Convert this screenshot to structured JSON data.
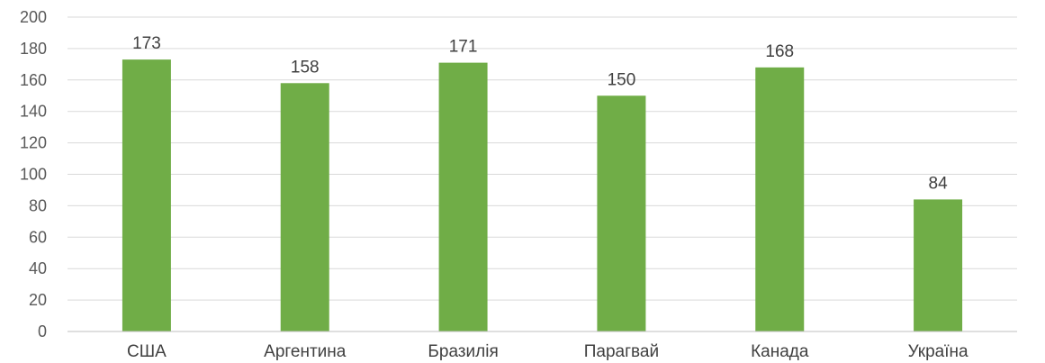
{
  "chart_data": {
    "type": "bar",
    "title": "",
    "xlabel": "",
    "ylabel": "",
    "categories": [
      "США",
      "Аргентина",
      "Бразилія",
      "Парагвай",
      "Канада",
      "Україна"
    ],
    "values": [
      173,
      158,
      171,
      150,
      168,
      84
    ],
    "ylim": [
      0,
      200
    ],
    "yticks": [
      0,
      20,
      40,
      60,
      80,
      100,
      120,
      140,
      160,
      180,
      200
    ],
    "grid": true,
    "legend": "none",
    "bar_color": "#70ad47",
    "data_labels": true
  }
}
